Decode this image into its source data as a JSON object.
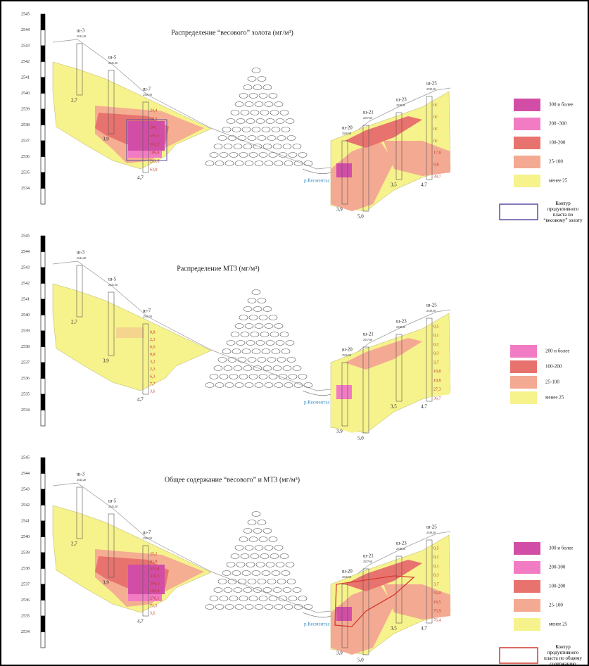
{
  "panels": [
    {
      "title": "Распределение “весового” золота (мг/м³)",
      "scale": [
        "2545",
        "2544",
        "2543",
        "2542",
        "2541",
        "2540",
        "2539",
        "2538",
        "2537",
        "2536",
        "2535",
        "2534"
      ],
      "wells": [
        {
          "name": "ш-3",
          "elev": "2543,28",
          "depth": "2,7"
        },
        {
          "name": "ш-5",
          "elev": "2541,30",
          "depth": "3,9"
        },
        {
          "name": "ш-7",
          "elev": "2539,50",
          "depth": "4,7",
          "values": [
            "24,4",
            "28,5",
            "286,",
            "409,5",
            "362,9",
            "189,8",
            "263,8",
            "63,8"
          ]
        },
        {
          "name": "ш-20",
          "elev": "2536,50",
          "depth": "3,9"
        },
        {
          "name": "ш-21",
          "elev": "2537,60",
          "depth": "5,0"
        },
        {
          "name": "ш-23",
          "elev": "2538,20",
          "depth": "3,5"
        },
        {
          "name": "ш-25",
          "elev": "2539,50",
          "depth": "4,7",
          "values": [
            "пс",
            "пс",
            "пс",
            "пс",
            "17,8",
            "9,8",
            "39,7"
          ]
        }
      ],
      "river": "р.Кесментас",
      "legend": [
        {
          "label": "300 и более",
          "color": "#d24ea6"
        },
        {
          "label": "200 -300",
          "color": "#f27cc4"
        },
        {
          "label": "100-200",
          "color": "#e8736e"
        },
        {
          "label": "25-100",
          "color": "#f4aa92"
        },
        {
          "label": "менее 25",
          "color": "#f6f28c"
        }
      ],
      "contour": {
        "label": "Контур продуктивного пласта по “весовому” золоту",
        "color": "#5a4fa0"
      }
    },
    {
      "title": "Распределение МТЗ (мг/м³)",
      "scale": [
        "2545",
        "2544",
        "2543",
        "2542",
        "2541",
        "2540",
        "2539",
        "2538",
        "2537",
        "2536",
        "2535",
        "2534"
      ],
      "wells": [
        {
          "name": "ш-3",
          "elev": "2543,28",
          "depth": "2,7"
        },
        {
          "name": "ш-5",
          "elev": "2541,30",
          "depth": "3,9"
        },
        {
          "name": "ш-7",
          "elev": "2539,50",
          "depth": "4,7",
          "values": [
            "0,8",
            "2,3",
            "6,6",
            "0,8",
            "3,2",
            "2,3",
            "6,3",
            "7,7",
            "3,6"
          ]
        },
        {
          "name": "ш-20",
          "elev": "2536,50",
          "depth": "3,9"
        },
        {
          "name": "ш-21",
          "elev": "2537,60",
          "depth": "5,0"
        },
        {
          "name": "ш-23",
          "elev": "2538,20",
          "depth": "3,5"
        },
        {
          "name": "ш-25",
          "elev": "2539,50",
          "depth": "4,7",
          "values": [
            "0,5",
            "0,1",
            "0,1",
            "0,3",
            "3,7",
            "18,8",
            "18,8",
            "27,3",
            "36,7"
          ]
        }
      ],
      "river": "р.Кесментас",
      "legend": [
        {
          "label": "200 и более",
          "color": "#f27cc4"
        },
        {
          "label": "100-200",
          "color": "#e8736e"
        },
        {
          "label": "25-100",
          "color": "#f4aa92"
        },
        {
          "label": "менее 25",
          "color": "#f6f28c"
        }
      ]
    },
    {
      "title": "Общее содержание “весового” и МТЗ (мг/м³)",
      "scale": [
        "2545",
        "2544",
        "2543",
        "2542",
        "2541",
        "2540",
        "2539",
        "2538",
        "2537",
        "2536",
        "2535",
        "2534"
      ],
      "wells": [
        {
          "name": "ш-3",
          "elev": "2543,28",
          "depth": "2,7"
        },
        {
          "name": "ш-5",
          "elev": "2541,30",
          "depth": "3,9"
        },
        {
          "name": "ш-7",
          "elev": "2539,50",
          "depth": "4,7",
          "values": [
            "25,2",
            "41,8",
            "425,8",
            "418,3",
            "366,3",
            "192,4",
            "276,1",
            "71,5",
            "3,6"
          ]
        },
        {
          "name": "ш-20",
          "elev": "2536,50",
          "depth": "3,9"
        },
        {
          "name": "ш-21",
          "elev": "2537,60",
          "depth": "5,0"
        },
        {
          "name": "ш-23",
          "elev": "2538,20",
          "depth": "3,5"
        },
        {
          "name": "ш-25",
          "elev": "2539,50",
          "depth": "4,7",
          "values": [
            "0,5",
            "0,1",
            "0,1",
            "0,3",
            "3,7",
            "56,0",
            "18,5",
            "75,9",
            "76,4"
          ]
        }
      ],
      "river": "р.Кесментас",
      "legend": [
        {
          "label": "300 и более",
          "color": "#d24ea6"
        },
        {
          "label": "200-300",
          "color": "#f27cc4"
        },
        {
          "label": "100-200",
          "color": "#e8736e"
        },
        {
          "label": "25-100",
          "color": "#f4aa92"
        },
        {
          "label": "менее 25",
          "color": "#f6f28c"
        }
      ],
      "contour": {
        "label": "Контур продуктивного пласта по общему содержанию",
        "color": "#d23a2e"
      }
    }
  ]
}
